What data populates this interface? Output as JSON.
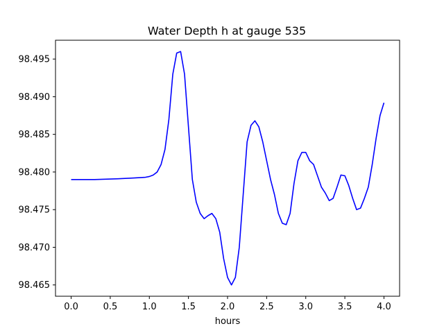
{
  "chart_data": {
    "type": "line",
    "title": "Water Depth h at gauge 535",
    "xlabel": "hours",
    "ylabel": "",
    "xlim": [
      -0.2,
      4.2
    ],
    "ylim": [
      98.4635,
      98.4975
    ],
    "xticks": [
      {
        "value": 0.0,
        "label": "0.0"
      },
      {
        "value": 0.5,
        "label": "0.5"
      },
      {
        "value": 1.0,
        "label": "1.0"
      },
      {
        "value": 1.5,
        "label": "1.5"
      },
      {
        "value": 2.0,
        "label": "2.0"
      },
      {
        "value": 2.5,
        "label": "2.5"
      },
      {
        "value": 3.0,
        "label": "3.0"
      },
      {
        "value": 3.5,
        "label": "3.5"
      },
      {
        "value": 4.0,
        "label": "4.0"
      }
    ],
    "yticks": [
      {
        "value": 98.465,
        "label": "98.465"
      },
      {
        "value": 98.47,
        "label": "98.470"
      },
      {
        "value": 98.475,
        "label": "98.475"
      },
      {
        "value": 98.48,
        "label": "98.480"
      },
      {
        "value": 98.485,
        "label": "98.485"
      },
      {
        "value": 98.49,
        "label": "98.490"
      },
      {
        "value": 98.495,
        "label": "98.495"
      }
    ],
    "grid": false,
    "series": [
      {
        "color": "#0000ff",
        "x": [
          0.0,
          0.3,
          0.6,
          0.8,
          0.95,
          1.0,
          1.05,
          1.1,
          1.15,
          1.2,
          1.25,
          1.3,
          1.35,
          1.4,
          1.45,
          1.5,
          1.55,
          1.6,
          1.65,
          1.7,
          1.75,
          1.8,
          1.85,
          1.9,
          1.95,
          2.0,
          2.05,
          2.1,
          2.15,
          2.2,
          2.25,
          2.3,
          2.35,
          2.4,
          2.45,
          2.5,
          2.55,
          2.6,
          2.65,
          2.7,
          2.75,
          2.8,
          2.85,
          2.9,
          2.95,
          3.0,
          3.05,
          3.1,
          3.15,
          3.2,
          3.25,
          3.3,
          3.35,
          3.4,
          3.45,
          3.5,
          3.55,
          3.6,
          3.65,
          3.7,
          3.75,
          3.8,
          3.85,
          3.9,
          3.95,
          4.0
        ],
        "y": [
          98.479,
          98.479,
          98.4791,
          98.4792,
          98.4793,
          98.4794,
          98.4796,
          98.48,
          98.481,
          98.483,
          98.487,
          98.493,
          98.4958,
          98.496,
          98.493,
          98.486,
          98.479,
          98.476,
          98.4745,
          98.4738,
          98.4742,
          98.4745,
          98.4738,
          98.472,
          98.4685,
          98.466,
          98.465,
          98.466,
          98.47,
          98.477,
          98.484,
          98.4862,
          98.4868,
          98.486,
          98.484,
          98.4815,
          98.479,
          98.477,
          98.4745,
          98.4732,
          98.473,
          98.4745,
          98.4785,
          98.4815,
          98.4826,
          98.4826,
          98.4815,
          98.481,
          98.4795,
          98.478,
          98.4772,
          98.4762,
          98.4765,
          98.478,
          98.4796,
          98.4795,
          98.4782,
          98.4765,
          98.475,
          98.4752,
          98.4765,
          98.478,
          98.481,
          98.4845,
          98.4875,
          98.4892
        ]
      }
    ]
  }
}
